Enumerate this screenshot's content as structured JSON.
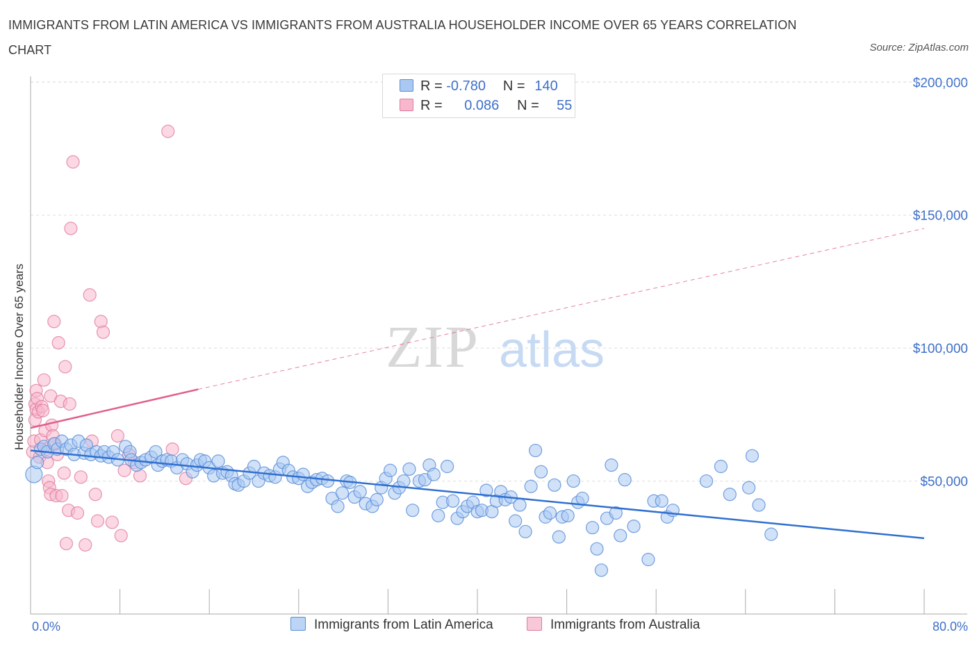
{
  "title": "IMMIGRANTS FROM LATIN AMERICA VS IMMIGRANTS FROM AUSTRALIA HOUSEHOLDER INCOME OVER 65 YEARS CORRELATION CHART",
  "source": "Source: ZipAtlas.com",
  "watermark": {
    "zip": "ZIP",
    "atlas": "atlas"
  },
  "legend": {
    "rows": [
      {
        "r_label": "R =",
        "r_value": "-0.780",
        "n_label": "N =",
        "n_value": "140"
      },
      {
        "r_label": "R =",
        "r_value": "0.086",
        "n_label": "N =",
        "n_value": "55"
      }
    ]
  },
  "colors": {
    "blue_fill": "#a9c8f2",
    "blue_stroke": "#5b8fd8",
    "blue_line": "#2f6fd0",
    "pink_fill": "#f7b8cc",
    "pink_stroke": "#e07a9c",
    "pink_line": "#e0608a",
    "tick_text": "#3d6fc8",
    "grid": "#dddddd"
  },
  "chart_data": {
    "type": "scatter",
    "title": "IMMIGRANTS FROM LATIN AMERICA VS IMMIGRANTS FROM AUSTRALIA HOUSEHOLDER INCOME OVER 65 YEARS CORRELATION CHART",
    "xlabel": "",
    "ylabel": "Householder Income Over 65 years",
    "xlim": [
      0,
      80
    ],
    "ylim": [
      0,
      210000
    ],
    "x_tick_labels": [
      "0.0%",
      "80.0%"
    ],
    "y_ticks": [
      50000,
      100000,
      150000,
      200000
    ],
    "y_tick_labels": [
      "$50,000",
      "$100,000",
      "$150,000",
      "$200,000"
    ],
    "grid": true,
    "legend_position": "top-center",
    "series": [
      {
        "name": "Immigrants from Latin America",
        "trend": {
          "x": [
            0,
            80
          ],
          "y": [
            61500,
            28500
          ],
          "style": "solid"
        },
        "points": [
          [
            0.3,
            52500
          ],
          [
            0.6,
            57000
          ],
          [
            0.9,
            62000
          ],
          [
            1.2,
            63000
          ],
          [
            1.5,
            61000
          ],
          [
            2.1,
            64000
          ],
          [
            2.4,
            62000
          ],
          [
            2.8,
            65000
          ],
          [
            3.2,
            62000
          ],
          [
            3.6,
            63500
          ],
          [
            3.9,
            60000
          ],
          [
            4.3,
            65000
          ],
          [
            4.8,
            60500
          ],
          [
            5.0,
            63500
          ],
          [
            5.4,
            60000
          ],
          [
            5.9,
            61000
          ],
          [
            6.3,
            59500
          ],
          [
            6.6,
            61000
          ],
          [
            7.0,
            59000
          ],
          [
            7.4,
            61000
          ],
          [
            7.8,
            58000
          ],
          [
            8.5,
            63000
          ],
          [
            8.9,
            61000
          ],
          [
            9.0,
            58000
          ],
          [
            9.5,
            56000
          ],
          [
            9.9,
            57000
          ],
          [
            10.3,
            58000
          ],
          [
            10.8,
            59000
          ],
          [
            11.2,
            61000
          ],
          [
            11.4,
            56000
          ],
          [
            11.8,
            57500
          ],
          [
            12.2,
            58000
          ],
          [
            12.6,
            57500
          ],
          [
            13.1,
            55000
          ],
          [
            13.6,
            58000
          ],
          [
            14.0,
            56500
          ],
          [
            14.5,
            53500
          ],
          [
            14.9,
            56000
          ],
          [
            15.2,
            58000
          ],
          [
            15.6,
            57500
          ],
          [
            16.0,
            55000
          ],
          [
            16.4,
            52000
          ],
          [
            16.8,
            57500
          ],
          [
            17.2,
            53000
          ],
          [
            17.6,
            53500
          ],
          [
            18.0,
            52000
          ],
          [
            18.3,
            49000
          ],
          [
            18.6,
            48500
          ],
          [
            19.1,
            50000
          ],
          [
            19.6,
            53000
          ],
          [
            20.0,
            55500
          ],
          [
            20.4,
            50000
          ],
          [
            20.9,
            53000
          ],
          [
            21.4,
            52000
          ],
          [
            21.9,
            51500
          ],
          [
            22.3,
            54500
          ],
          [
            22.6,
            57000
          ],
          [
            23.1,
            54000
          ],
          [
            23.5,
            51500
          ],
          [
            24.0,
            51000
          ],
          [
            24.4,
            52500
          ],
          [
            24.8,
            48000
          ],
          [
            25.2,
            49500
          ],
          [
            25.6,
            50500
          ],
          [
            26.1,
            51000
          ],
          [
            26.6,
            50000
          ],
          [
            27.0,
            43500
          ],
          [
            27.5,
            40500
          ],
          [
            27.9,
            45500
          ],
          [
            28.3,
            50000
          ],
          [
            28.6,
            49500
          ],
          [
            29.0,
            44000
          ],
          [
            29.5,
            46000
          ],
          [
            30.0,
            41500
          ],
          [
            30.6,
            40500
          ],
          [
            31.0,
            43000
          ],
          [
            31.4,
            47500
          ],
          [
            31.8,
            51000
          ],
          [
            32.2,
            54000
          ],
          [
            32.6,
            45500
          ],
          [
            33.0,
            47500
          ],
          [
            33.4,
            50000
          ],
          [
            33.9,
            54500
          ],
          [
            34.2,
            39000
          ],
          [
            34.8,
            50000
          ],
          [
            35.3,
            50500
          ],
          [
            35.7,
            56000
          ],
          [
            36.1,
            52500
          ],
          [
            36.5,
            37000
          ],
          [
            36.9,
            42000
          ],
          [
            37.3,
            55500
          ],
          [
            37.8,
            42500
          ],
          [
            38.2,
            36000
          ],
          [
            38.7,
            38500
          ],
          [
            39.1,
            40500
          ],
          [
            39.6,
            42000
          ],
          [
            40.0,
            38500
          ],
          [
            40.4,
            39000
          ],
          [
            40.8,
            46500
          ],
          [
            41.3,
            38500
          ],
          [
            41.7,
            42500
          ],
          [
            42.1,
            46000
          ],
          [
            42.5,
            43000
          ],
          [
            43.0,
            44000
          ],
          [
            43.4,
            35000
          ],
          [
            43.8,
            41000
          ],
          [
            44.3,
            31000
          ],
          [
            44.8,
            48000
          ],
          [
            45.2,
            61500
          ],
          [
            45.7,
            53500
          ],
          [
            46.1,
            36500
          ],
          [
            46.5,
            38000
          ],
          [
            46.9,
            48500
          ],
          [
            47.3,
            29000
          ],
          [
            47.6,
            36500
          ],
          [
            48.1,
            37000
          ],
          [
            48.6,
            50000
          ],
          [
            49.0,
            42000
          ],
          [
            49.4,
            43500
          ],
          [
            50.3,
            32500
          ],
          [
            50.7,
            24500
          ],
          [
            51.1,
            16500
          ],
          [
            51.6,
            36000
          ],
          [
            52.0,
            56000
          ],
          [
            52.4,
            38000
          ],
          [
            52.8,
            29500
          ],
          [
            53.2,
            50500
          ],
          [
            54.0,
            33000
          ],
          [
            55.3,
            20500
          ],
          [
            55.8,
            42500
          ],
          [
            56.5,
            42500
          ],
          [
            57.0,
            36500
          ],
          [
            57.5,
            39000
          ],
          [
            60.5,
            50000
          ],
          [
            61.8,
            55500
          ],
          [
            62.6,
            45000
          ],
          [
            64.3,
            47500
          ],
          [
            64.6,
            59500
          ],
          [
            65.2,
            41000
          ],
          [
            66.3,
            30000
          ]
        ]
      },
      {
        "name": "Immigrants from Australia",
        "trend": {
          "x": [
            0,
            15,
            80
          ],
          "y": [
            70000,
            84500,
            145000
          ],
          "style": "solid-then-dashed"
        },
        "points": [
          [
            0.2,
            61000
          ],
          [
            0.3,
            65000
          ],
          [
            0.4,
            73000
          ],
          [
            0.4,
            79000
          ],
          [
            0.5,
            84000
          ],
          [
            0.5,
            77000
          ],
          [
            0.6,
            81000
          ],
          [
            0.7,
            76000
          ],
          [
            0.8,
            59000
          ],
          [
            0.9,
            65500
          ],
          [
            1.0,
            78000
          ],
          [
            1.1,
            76500
          ],
          [
            1.2,
            88000
          ],
          [
            1.3,
            69000
          ],
          [
            1.4,
            62000
          ],
          [
            1.5,
            57000
          ],
          [
            1.6,
            50000
          ],
          [
            1.7,
            47500
          ],
          [
            1.8,
            45000
          ],
          [
            1.8,
            82000
          ],
          [
            1.9,
            71000
          ],
          [
            2.0,
            67000
          ],
          [
            2.1,
            110000
          ],
          [
            2.2,
            64000
          ],
          [
            2.3,
            44500
          ],
          [
            2.4,
            60000
          ],
          [
            2.5,
            102000
          ],
          [
            2.7,
            80000
          ],
          [
            2.8,
            44500
          ],
          [
            3.0,
            53000
          ],
          [
            3.1,
            93000
          ],
          [
            3.2,
            26500
          ],
          [
            3.4,
            39000
          ],
          [
            3.5,
            79000
          ],
          [
            3.6,
            145000
          ],
          [
            3.8,
            170000
          ],
          [
            4.2,
            38000
          ],
          [
            4.5,
            51500
          ],
          [
            4.9,
            26000
          ],
          [
            5.3,
            120000
          ],
          [
            5.5,
            65000
          ],
          [
            5.8,
            45000
          ],
          [
            6.0,
            35000
          ],
          [
            6.3,
            110000
          ],
          [
            6.5,
            106000
          ],
          [
            7.3,
            34500
          ],
          [
            7.8,
            67000
          ],
          [
            8.1,
            29500
          ],
          [
            8.4,
            54000
          ],
          [
            8.8,
            60000
          ],
          [
            9.3,
            57000
          ],
          [
            9.8,
            52000
          ],
          [
            12.3,
            181500
          ],
          [
            12.7,
            62000
          ],
          [
            13.9,
            51000
          ]
        ]
      }
    ]
  },
  "bottom_legend": [
    "Immigrants from Latin America",
    "Immigrants from Australia"
  ]
}
